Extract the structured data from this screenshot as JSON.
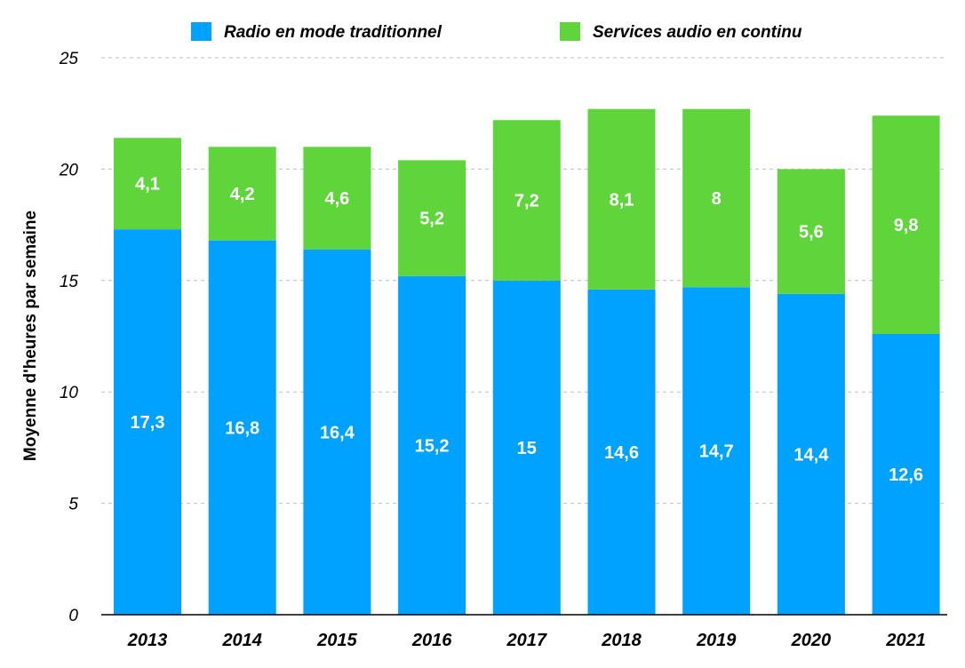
{
  "chart_data": {
    "type": "bar",
    "stacked": true,
    "categories": [
      "2013",
      "2014",
      "2015",
      "2016",
      "2017",
      "2018",
      "2019",
      "2020",
      "2021"
    ],
    "series": [
      {
        "name": "Radio en mode traditionnel",
        "color": "#00a2ff",
        "values": [
          17.3,
          16.8,
          16.4,
          15.2,
          15,
          14.6,
          14.7,
          14.4,
          12.6
        ],
        "labels": [
          "17,3",
          "16,8",
          "16,4",
          "15,2",
          "15",
          "14,6",
          "14,7",
          "14,4",
          "12,6"
        ]
      },
      {
        "name": "Services audio en continu",
        "color": "#5fd53b",
        "values": [
          4.1,
          4.2,
          4.6,
          5.2,
          7.2,
          8.1,
          8,
          5.6,
          9.8
        ],
        "labels": [
          "4,1",
          "4,2",
          "4,6",
          "5,2",
          "7,2",
          "8,1",
          "8",
          "5,6",
          "9,8"
        ]
      }
    ],
    "xlabel": "",
    "ylabel": "Moyenne d'heures par semaine",
    "ylim": [
      0,
      25
    ],
    "yticks": [
      "0",
      "5",
      "10",
      "15",
      "20",
      "25"
    ],
    "grid": true,
    "legend_position": "top"
  }
}
